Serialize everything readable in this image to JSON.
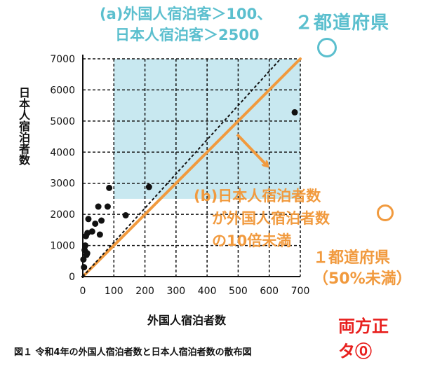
{
  "chart_data": {
    "type": "scatter",
    "xlabel": "外国人宿泊者数",
    "ylabel": "日本人宿泊者数",
    "xlim": [
      0,
      700
    ],
    "ylim": [
      0,
      7000
    ],
    "xticks": [
      "0",
      "100",
      "200",
      "300",
      "400",
      "500",
      "600",
      "700"
    ],
    "yticks": [
      "0",
      "1000",
      "2000",
      "3000",
      "4000",
      "5000",
      "6000",
      "7000"
    ],
    "grid": "dashed",
    "points": [
      {
        "x": 2,
        "y": 550
      },
      {
        "x": 4,
        "y": 300
      },
      {
        "x": 6,
        "y": 850
      },
      {
        "x": 8,
        "y": 1000
      },
      {
        "x": 10,
        "y": 1300
      },
      {
        "x": 12,
        "y": 700
      },
      {
        "x": 14,
        "y": 750
      },
      {
        "x": 15,
        "y": 1400
      },
      {
        "x": 18,
        "y": 1850
      },
      {
        "x": 30,
        "y": 1450
      },
      {
        "x": 40,
        "y": 1700
      },
      {
        "x": 50,
        "y": 2250
      },
      {
        "x": 55,
        "y": 1350
      },
      {
        "x": 60,
        "y": 1800
      },
      {
        "x": 80,
        "y": 2250
      },
      {
        "x": 85,
        "y": 2850
      },
      {
        "x": 138,
        "y": 1970
      },
      {
        "x": 213,
        "y": 2880
      },
      {
        "x": 682,
        "y": 5280
      }
    ],
    "region": {
      "x_min": 100,
      "y_min": 2500,
      "color": "#c8e8f0"
    },
    "lines": [
      {
        "slope": 10,
        "style": "solid",
        "color": "#f19a3e"
      },
      {
        "slope": 11,
        "style": "dashed",
        "color": "#111111"
      }
    ]
  },
  "annotations": {
    "a_line1": "(a)外国人宿泊客＞100、",
    "a_line2": "日本人宿泊客＞2500",
    "a_result": "２都道府県",
    "a_mark": "",
    "b_line1": "(b)日本人宿泊者数",
    "b_line2": "が外国人宿泊者数",
    "b_line3": "の10倍未満",
    "b_mark": "",
    "b_result1": "１都道府県",
    "b_result2": "（50%未満）",
    "both1": "両方正",
    "both2": "タ⓪"
  },
  "caption": "図１ 令和4年の外国人宿泊者数と日本人宿泊者数の散布図",
  "colors": {
    "teal": "#5bbfce",
    "orange": "#f19a3e",
    "red": "#e8201e"
  }
}
